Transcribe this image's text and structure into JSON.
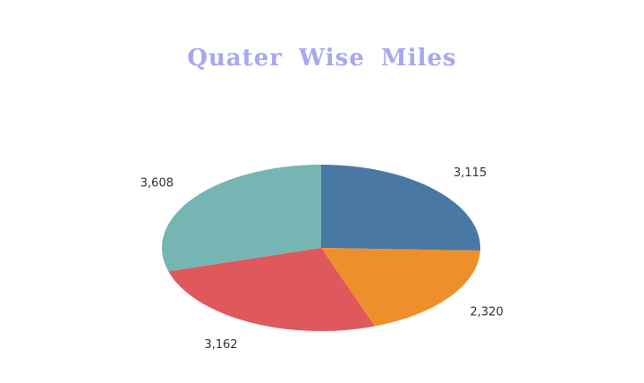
{
  "title": "Quater  Wise  Miles",
  "title_color": "#a9a6f2",
  "chart_data": {
    "type": "pie",
    "title": "Quater  Wise  Miles",
    "start_angle_deg": 0,
    "direction": "clockwise",
    "slices": [
      {
        "value": 3115,
        "label": "3,115",
        "color": "#4a78a5"
      },
      {
        "value": 2320,
        "label": "2,320",
        "color": "#ef8f2b"
      },
      {
        "value": 3162,
        "label": "3,162",
        "color": "#df585c"
      },
      {
        "value": 3608,
        "label": "3,608",
        "color": "#75b5b3"
      }
    ]
  }
}
